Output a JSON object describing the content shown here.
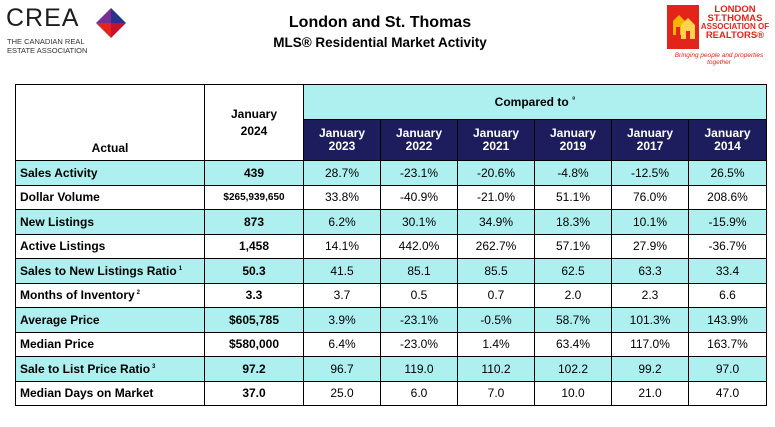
{
  "header": {
    "crea_word": "CREA",
    "crea_sub": [
      "THE CANADIAN REAL",
      "ESTATE ASSOCIATION"
    ],
    "title": "London and St. Thomas",
    "subtitle": "MLS® Residential Market Activity",
    "assoc_lines": [
      "LONDON",
      "ST.THOMAS",
      "ASSOCIATION OF",
      "REALTORS®"
    ],
    "assoc_tagline": "Bringing people and properties together"
  },
  "colors": {
    "cyan": "#aef0f0",
    "navy": "#1d1d5e",
    "red": "#e3241b"
  },
  "table": {
    "actual_label": "Actual",
    "current_month": "January",
    "current_year": "2024",
    "compared_label": "Compared to",
    "compared_note": "⁸",
    "comparison_periods": [
      {
        "month": "January",
        "year": "2023"
      },
      {
        "month": "January",
        "year": "2022"
      },
      {
        "month": "January",
        "year": "2021"
      },
      {
        "month": "January",
        "year": "2019"
      },
      {
        "month": "January",
        "year": "2017"
      },
      {
        "month": "January",
        "year": "2014"
      }
    ],
    "rows": [
      {
        "label": "Sales Activity",
        "note": "",
        "current": "439",
        "values": [
          "28.7%",
          "-23.1%",
          "-20.6%",
          "-4.8%",
          "-12.5%",
          "26.5%"
        ]
      },
      {
        "label": "Dollar Volume",
        "note": "",
        "current": "$265,939,650",
        "values": [
          "33.8%",
          "-40.9%",
          "-21.0%",
          "51.1%",
          "76.0%",
          "208.6%"
        ]
      },
      {
        "label": "New Listings",
        "note": "",
        "current": "873",
        "values": [
          "6.2%",
          "30.1%",
          "34.9%",
          "18.3%",
          "10.1%",
          "-15.9%"
        ]
      },
      {
        "label": "Active Listings",
        "note": "",
        "current": "1,458",
        "values": [
          "14.1%",
          "442.0%",
          "262.7%",
          "57.1%",
          "27.9%",
          "-36.7%"
        ]
      },
      {
        "label": "Sales to New Listings Ratio",
        "note": "1",
        "current": "50.3",
        "values": [
          "41.5",
          "85.1",
          "85.5",
          "62.5",
          "63.3",
          "33.4"
        ]
      },
      {
        "label": "Months of Inventory",
        "note": "2",
        "current": "3.3",
        "values": [
          "3.7",
          "0.5",
          "0.7",
          "2.0",
          "2.3",
          "6.6"
        ]
      },
      {
        "label": "Average Price",
        "note": "",
        "current": "$605,785",
        "values": [
          "3.9%",
          "-23.1%",
          "-0.5%",
          "58.7%",
          "101.3%",
          "143.9%"
        ]
      },
      {
        "label": "Median Price",
        "note": "",
        "current": "$580,000",
        "values": [
          "6.4%",
          "-23.0%",
          "1.4%",
          "63.4%",
          "117.0%",
          "163.7%"
        ]
      },
      {
        "label": "Sale to List Price Ratio",
        "note": "3",
        "current": "97.2",
        "values": [
          "96.7",
          "119.0",
          "110.2",
          "102.2",
          "99.2",
          "97.0"
        ]
      },
      {
        "label": "Median Days on Market",
        "note": "",
        "current": "37.0",
        "values": [
          "25.0",
          "6.0",
          "7.0",
          "10.0",
          "21.0",
          "47.0"
        ]
      }
    ]
  }
}
